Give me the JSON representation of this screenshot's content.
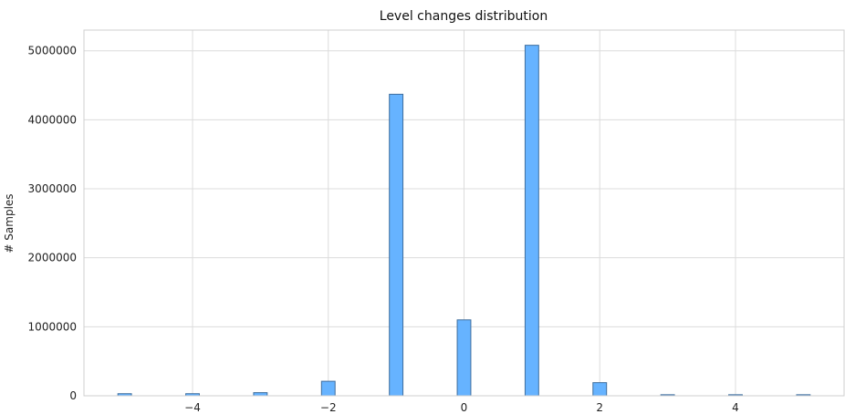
{
  "chart_data": {
    "type": "bar",
    "title": "Level changes distribution",
    "xlabel": "",
    "ylabel": "# Samples",
    "xlim": [
      -5.6,
      5.6
    ],
    "ylim": [
      0,
      5300000
    ],
    "xticks": [
      -4,
      -2,
      0,
      2,
      4
    ],
    "xtick_labels": [
      "−4",
      "−2",
      "0",
      "2",
      "4"
    ],
    "yticks": [
      0,
      1000000,
      2000000,
      3000000,
      4000000,
      5000000
    ],
    "ytick_labels": [
      "0",
      "1000000",
      "2000000",
      "3000000",
      "4000000",
      "5000000"
    ],
    "grid": true,
    "bar_color": "#66b3ff",
    "bar_edge_color": "#3f6e9e",
    "bins": [
      {
        "x": -5,
        "value": 30000
      },
      {
        "x": -4,
        "value": 30000
      },
      {
        "x": -3,
        "value": 45000
      },
      {
        "x": -2,
        "value": 210000
      },
      {
        "x": -1,
        "value": 4370000
      },
      {
        "x": 0,
        "value": 1100000
      },
      {
        "x": 1,
        "value": 5080000
      },
      {
        "x": 2,
        "value": 190000
      },
      {
        "x": 3,
        "value": 15000
      },
      {
        "x": 4,
        "value": 15000
      },
      {
        "x": 5,
        "value": 15000
      }
    ]
  }
}
